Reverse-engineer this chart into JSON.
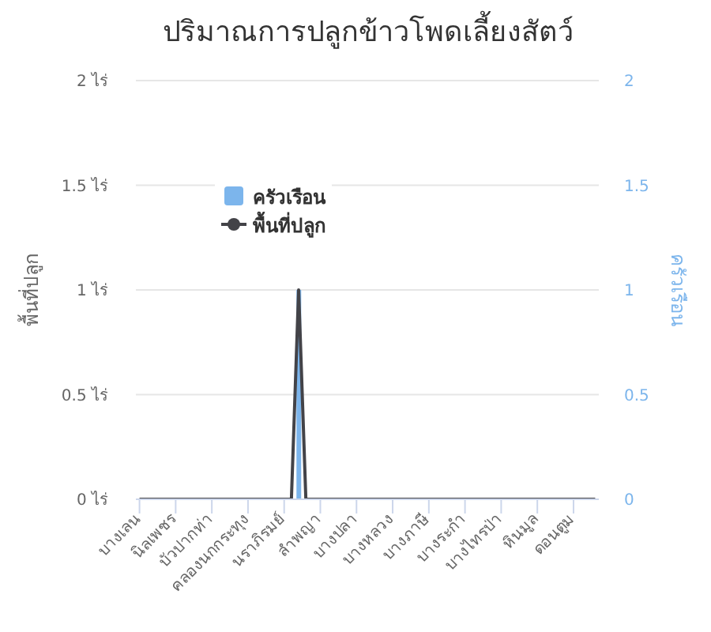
{
  "chart_data": {
    "type": "bar",
    "title": "ปริมาณการปลูกข้าวโพดเลี้ยงสัตว์",
    "ylabel": "พื้นที่ปลูก",
    "y2label": "ครัวเรือน",
    "categories": [
      "บางเลน",
      null,
      null,
      null,
      null,
      "นิลเพชร",
      null,
      null,
      null,
      null,
      "บัวปากท่า",
      null,
      null,
      null,
      null,
      "คลองนกกระทุง",
      null,
      null,
      null,
      null,
      "นราภิรมย์",
      null,
      null,
      null,
      null,
      "ลำพญา",
      null,
      null,
      null,
      null,
      "บางปลา",
      null,
      null,
      null,
      null,
      "บางหลวง",
      null,
      null,
      null,
      null,
      "บางภาษี",
      null,
      null,
      null,
      null,
      "บางระกำ",
      null,
      null,
      null,
      null,
      "บางไทรป่า",
      null,
      null,
      null,
      null,
      "หินมูล",
      null,
      null,
      null,
      null,
      "ดอนตูม",
      null,
      null,
      null
    ],
    "series": [
      {
        "name": "ครัวเรือน",
        "axis": "y2",
        "color": "#7cb5ec",
        "values": [
          0,
          0,
          0,
          0,
          0,
          0,
          0,
          0,
          0,
          0,
          0,
          0,
          0,
          0,
          0,
          0,
          0,
          0,
          0,
          0,
          0,
          0,
          1,
          0,
          0,
          0,
          0,
          0,
          0,
          0,
          0,
          0,
          0,
          0,
          0,
          0,
          0,
          0,
          0,
          0,
          0,
          0,
          0,
          0,
          0,
          0,
          0,
          0,
          0,
          0,
          0,
          0,
          0,
          0,
          0,
          0,
          0,
          0,
          0,
          0,
          0,
          0,
          0,
          0
        ]
      },
      {
        "name": "พื้นที่ปลูก",
        "type": "line",
        "color": "#434348",
        "values": [
          0,
          0,
          0,
          0,
          0,
          0,
          0,
          0,
          0,
          0,
          0,
          0,
          0,
          0,
          0,
          0,
          0,
          0,
          0,
          0,
          0,
          0,
          1,
          0,
          0,
          0,
          0,
          0,
          0,
          0,
          0,
          0,
          0,
          0,
          0,
          0,
          0,
          0,
          0,
          0,
          0,
          0,
          0,
          0,
          0,
          0,
          0,
          0,
          0,
          0,
          0,
          0,
          0,
          0,
          0,
          0,
          0,
          0,
          0,
          0,
          0,
          0,
          0,
          0
        ]
      }
    ],
    "ylim": [
      0,
      2
    ],
    "yticks": [
      {
        "value": 0,
        "label": "0 ไร่"
      },
      {
        "value": 0.5,
        "label": "0.5 ไร่"
      },
      {
        "value": 1,
        "label": "1 ไร่"
      },
      {
        "value": 1.5,
        "label": "1.5 ไร่"
      },
      {
        "value": 2,
        "label": "2 ไร่"
      }
    ],
    "y2lim": [
      0,
      2
    ],
    "y2ticks": [
      0,
      0.5,
      1,
      1.5,
      2
    ],
    "grid": "y",
    "legend": "top left",
    "marker": "none"
  }
}
